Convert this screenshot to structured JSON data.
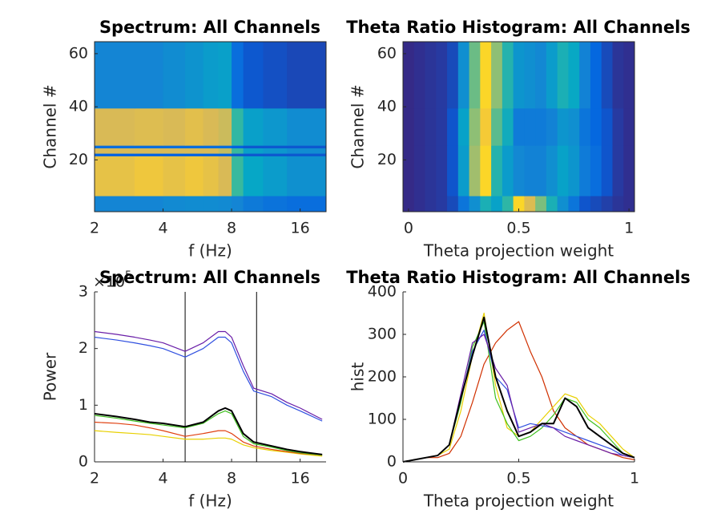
{
  "chart_data": [
    {
      "type": "heatmap",
      "title": "Spectrum: All Channels",
      "xlabel": "f (Hz)",
      "ylabel": "Channel #",
      "xscale": "log",
      "colormap": "parula",
      "clim": [
        0,
        1
      ],
      "x_edges": [
        2,
        3,
        4,
        5,
        6,
        7,
        8,
        9,
        11,
        14,
        20.8
      ],
      "y_edges": [
        0.5,
        6.5,
        21.5,
        22.5,
        24.5,
        25.5,
        39.5,
        64.5
      ],
      "values": [
        [
          0.3,
          0.3,
          0.32,
          0.33,
          0.33,
          0.32,
          0.3,
          0.25,
          0.22,
          0.2
        ],
        [
          0.88,
          0.9,
          0.88,
          0.9,
          0.88,
          0.85,
          0.6,
          0.45,
          0.4,
          0.35
        ],
        [
          0.15,
          0.15,
          0.15,
          0.15,
          0.15,
          0.15,
          0.12,
          0.12,
          0.12,
          0.12
        ],
        [
          0.85,
          0.85,
          0.85,
          0.85,
          0.85,
          0.82,
          0.6,
          0.42,
          0.38,
          0.33
        ],
        [
          0.2,
          0.2,
          0.2,
          0.2,
          0.2,
          0.2,
          0.15,
          0.12,
          0.12,
          0.12
        ],
        [
          0.85,
          0.86,
          0.85,
          0.87,
          0.85,
          0.83,
          0.58,
          0.42,
          0.38,
          0.33
        ],
        [
          0.3,
          0.3,
          0.33,
          0.36,
          0.4,
          0.42,
          0.2,
          0.12,
          0.1,
          0.08
        ]
      ],
      "xlim": [
        2,
        20.8
      ],
      "ylim": [
        0.5,
        64.5
      ],
      "xticks": [
        2,
        4,
        8,
        16
      ],
      "yticks": [
        20,
        40,
        60
      ]
    },
    {
      "type": "heatmap",
      "title": "Theta Ratio Histogram: All Channels",
      "xlabel": "Theta projection weight",
      "ylabel": "Channel #",
      "xscale": "linear",
      "colormap": "parula",
      "clim": [
        0,
        350
      ],
      "x_edges": [
        -0.025,
        0.025,
        0.075,
        0.125,
        0.175,
        0.225,
        0.275,
        0.325,
        0.375,
        0.425,
        0.475,
        0.525,
        0.575,
        0.625,
        0.675,
        0.725,
        0.775,
        0.825,
        0.875,
        0.925,
        0.975,
        1.025
      ],
      "y_edges": [
        0.5,
        6.5,
        25.5,
        39.5,
        64.5
      ],
      "values": [
        [
          0,
          5,
          10,
          15,
          30,
          80,
          120,
          180,
          150,
          200,
          330,
          300,
          250,
          180,
          120,
          80,
          40,
          30,
          20,
          10,
          5
        ],
        [
          0,
          5,
          10,
          15,
          40,
          140,
          270,
          330,
          190,
          140,
          110,
          100,
          100,
          120,
          150,
          130,
          90,
          70,
          40,
          15,
          5
        ],
        [
          0,
          5,
          10,
          15,
          40,
          150,
          260,
          320,
          230,
          170,
          90,
          90,
          90,
          100,
          130,
          120,
          80,
          60,
          40,
          15,
          5
        ],
        [
          0,
          5,
          10,
          15,
          30,
          120,
          240,
          330,
          260,
          190,
          130,
          120,
          110,
          140,
          180,
          160,
          100,
          60,
          30,
          10,
          5
        ]
      ],
      "xlim": [
        -0.025,
        1.025
      ],
      "ylim": [
        0.5,
        64.5
      ],
      "xticks": [
        0,
        0.5,
        1
      ],
      "yticks": [
        20,
        40,
        60
      ]
    },
    {
      "type": "line",
      "title": "Spectrum: All Channels",
      "xlabel": "f (Hz)",
      "ylabel": "Power",
      "y_multiplier": "×10",
      "y_multiplier_exponent": "5",
      "xscale": "log",
      "x": [
        2,
        2.5,
        3,
        3.5,
        4,
        5,
        6,
        7,
        7.5,
        8,
        9,
        10,
        12,
        14,
        16,
        20
      ],
      "series": [
        {
          "color": "#3050e0",
          "values": [
            2.2,
            2.15,
            2.1,
            2.05,
            2.0,
            1.85,
            2.0,
            2.2,
            2.2,
            2.1,
            1.6,
            1.25,
            1.15,
            1.0,
            0.9,
            0.72
          ]
        },
        {
          "color": "#6a1fa8",
          "values": [
            2.3,
            2.25,
            2.2,
            2.15,
            2.1,
            1.95,
            2.1,
            2.3,
            2.3,
            2.2,
            1.7,
            1.3,
            1.2,
            1.05,
            0.95,
            0.75
          ]
        },
        {
          "color": "#e8d000",
          "values": [
            0.55,
            0.52,
            0.5,
            0.48,
            0.45,
            0.4,
            0.4,
            0.42,
            0.42,
            0.4,
            0.3,
            0.25,
            0.2,
            0.17,
            0.14,
            0.1
          ]
        },
        {
          "color": "#e04010",
          "values": [
            0.7,
            0.68,
            0.65,
            0.6,
            0.55,
            0.45,
            0.5,
            0.55,
            0.55,
            0.5,
            0.35,
            0.28,
            0.22,
            0.18,
            0.15,
            0.12
          ]
        },
        {
          "color": "#40c020",
          "values": [
            0.82,
            0.77,
            0.72,
            0.68,
            0.65,
            0.6,
            0.68,
            0.85,
            0.9,
            0.85,
            0.45,
            0.32,
            0.26,
            0.2,
            0.16,
            0.12
          ]
        },
        {
          "color": "#000000",
          "values": [
            0.85,
            0.8,
            0.75,
            0.7,
            0.68,
            0.62,
            0.7,
            0.9,
            0.95,
            0.9,
            0.5,
            0.35,
            0.28,
            0.22,
            0.18,
            0.13
          ]
        }
      ],
      "vlines": [
        5,
        10.3
      ],
      "xlim": [
        2,
        20.8
      ],
      "ylim": [
        0,
        3
      ],
      "xticks": [
        2,
        4,
        8,
        16
      ],
      "yticks": [
        0,
        1,
        2,
        3
      ]
    },
    {
      "type": "line",
      "title": "Theta Ratio Histogram: All Channels",
      "xlabel": "Theta projection weight",
      "ylabel": "hist",
      "xscale": "linear",
      "x": [
        0,
        0.05,
        0.1,
        0.15,
        0.2,
        0.25,
        0.3,
        0.35,
        0.4,
        0.45,
        0.5,
        0.55,
        0.6,
        0.65,
        0.7,
        0.75,
        0.8,
        0.85,
        0.9,
        0.95,
        1
      ],
      "series": [
        {
          "color": "#d03000",
          "values": [
            0,
            5,
            10,
            10,
            20,
            60,
            140,
            230,
            280,
            310,
            330,
            260,
            200,
            120,
            80,
            60,
            40,
            30,
            20,
            10,
            5
          ]
        },
        {
          "color": "#e8d000",
          "values": [
            0,
            5,
            10,
            15,
            30,
            120,
            250,
            350,
            180,
            80,
            60,
            70,
            100,
            130,
            160,
            150,
            110,
            90,
            60,
            30,
            10
          ]
        },
        {
          "color": "#40c020",
          "values": [
            0,
            5,
            10,
            15,
            40,
            140,
            270,
            330,
            150,
            90,
            50,
            60,
            80,
            110,
            150,
            140,
            100,
            80,
            50,
            20,
            10
          ]
        },
        {
          "color": "#3050e0",
          "values": [
            0,
            5,
            10,
            15,
            40,
            150,
            260,
            310,
            200,
            170,
            80,
            90,
            85,
            80,
            70,
            60,
            50,
            40,
            30,
            15,
            10
          ]
        },
        {
          "color": "#6a1fa8",
          "values": [
            0,
            5,
            10,
            15,
            40,
            160,
            280,
            300,
            220,
            180,
            70,
            80,
            90,
            80,
            60,
            50,
            40,
            30,
            20,
            15,
            10
          ]
        },
        {
          "color": "#000000",
          "values": [
            0,
            5,
            10,
            15,
            40,
            150,
            250,
            340,
            200,
            120,
            60,
            70,
            90,
            90,
            150,
            130,
            80,
            60,
            40,
            20,
            10
          ]
        }
      ],
      "xlim": [
        0,
        1
      ],
      "ylim": [
        0,
        400
      ],
      "xticks": [
        0,
        0.5,
        1
      ],
      "yticks": [
        0,
        100,
        200,
        300,
        400
      ]
    }
  ]
}
